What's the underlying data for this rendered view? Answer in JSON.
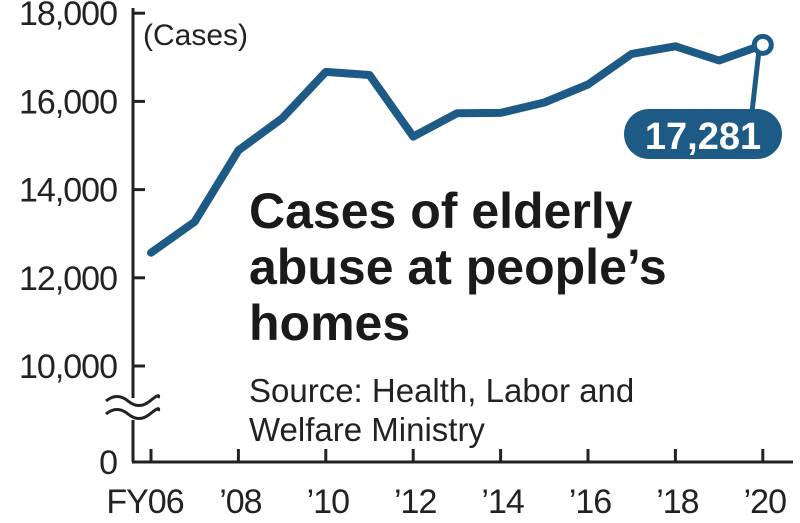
{
  "chart_data": {
    "type": "line",
    "title_lines": [
      "Cases of elderly",
      "abuse at people’s",
      "homes"
    ],
    "source_lines": [
      "Source: Health, Labor and",
      "Welfare Ministry"
    ],
    "ylabel": "(Cases)",
    "xlabel": "",
    "y_ticks": [
      {
        "value": 18000,
        "label": "18,000"
      },
      {
        "value": 16000,
        "label": "16,000"
      },
      {
        "value": 14000,
        "label": "14,000"
      },
      {
        "value": 12000,
        "label": "12,000"
      },
      {
        "value": 10000,
        "label": "10,000"
      },
      {
        "value": 0,
        "label": "0"
      }
    ],
    "y_axis_broken": true,
    "ylim": [
      10000,
      18000
    ],
    "x_ticks": [
      "FY06",
      "’08",
      "’10",
      "’12",
      "’14",
      "’16",
      "’18",
      "’20"
    ],
    "x": [
      2006,
      2007,
      2008,
      2009,
      2010,
      2011,
      2012,
      2013,
      2014,
      2015,
      2016,
      2017,
      2018,
      2019,
      2020
    ],
    "series": [
      {
        "values": [
          12569,
          13273,
          14889,
          15615,
          16668,
          16599,
          15202,
          15731,
          15739,
          15976,
          16384,
          17078,
          17249,
          16928,
          17281
        ]
      }
    ],
    "highlight": {
      "index": 14,
      "label": "17,281"
    },
    "line_color": "#1d5b86",
    "axis_color": "#222222"
  }
}
